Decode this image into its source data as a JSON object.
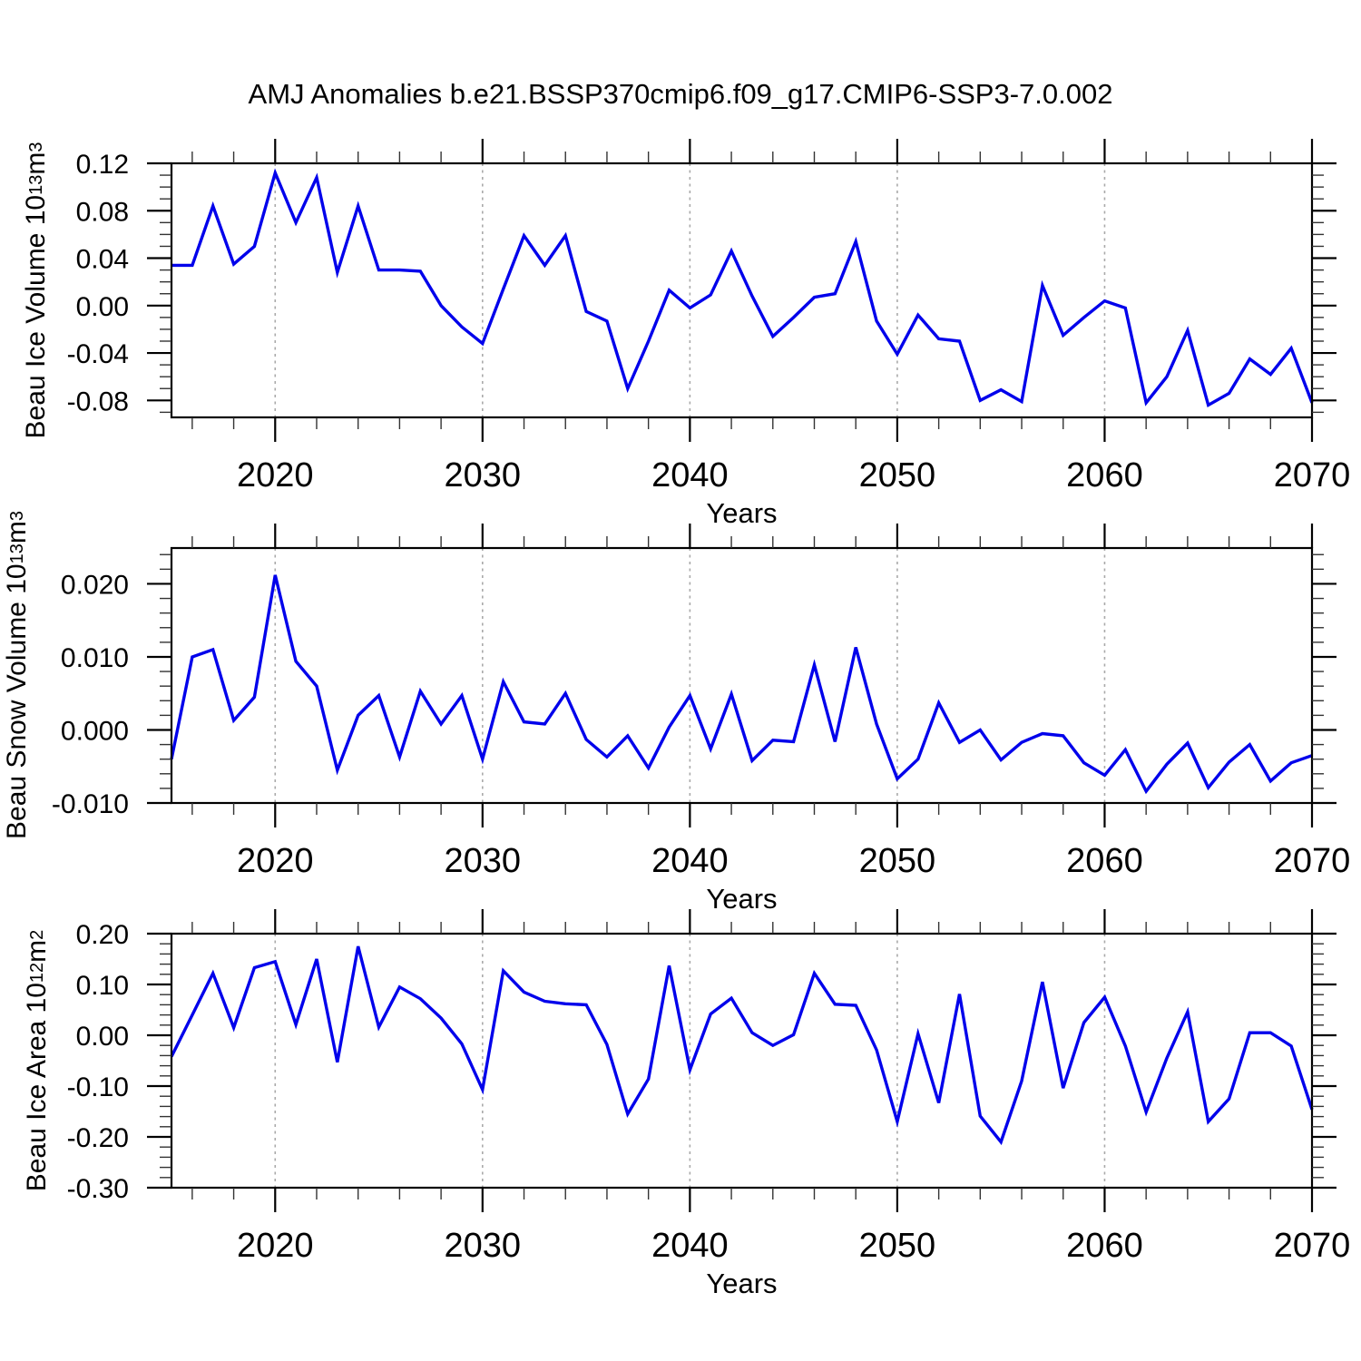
{
  "page": {
    "background": "#ffffff"
  },
  "chart_data": {
    "type": "line",
    "title": "AMJ Anomalies b.e21.BSSP370cmip6.f09_g17.CMIP6-SSP3-7.0.002",
    "xlabel": "Years",
    "xlim": [
      2015,
      2070
    ],
    "x_major_ticks": [
      2020,
      2030,
      2040,
      2050,
      2060,
      2070
    ],
    "x_tick_labels": [
      "2020",
      "2030",
      "2040",
      "2050",
      "2060",
      "2070"
    ],
    "x_minor_step": 2,
    "grid_decades": [
      2020,
      2030,
      2040,
      2050,
      2060
    ],
    "grid_on": true,
    "legend": "none",
    "line_color": "#0000EB",
    "grid_color": "#A9A9A9",
    "axis_color": "#000000",
    "x": [
      2015,
      2016,
      2017,
      2018,
      2019,
      2020,
      2021,
      2022,
      2023,
      2024,
      2025,
      2026,
      2027,
      2028,
      2029,
      2030,
      2031,
      2032,
      2033,
      2034,
      2035,
      2036,
      2037,
      2038,
      2039,
      2040,
      2041,
      2042,
      2043,
      2044,
      2045,
      2046,
      2047,
      2048,
      2049,
      2050,
      2051,
      2052,
      2053,
      2054,
      2055,
      2056,
      2057,
      2058,
      2059,
      2060,
      2061,
      2062,
      2063,
      2064,
      2065,
      2066,
      2067,
      2068,
      2069,
      2070
    ],
    "panels": [
      {
        "name": "beau-ice-volume",
        "ylabel_segments": [
          {
            "t": "Beau Ice Volume 10"
          },
          {
            "t": "13",
            "sup": true
          },
          {
            "t": " m"
          },
          {
            "t": "3",
            "sup": true
          }
        ],
        "ylabel_text": "Beau Ice Volume 10^13 m^3",
        "ylim": [
          -0.0943,
          0.12
        ],
        "y_major_ticks": [
          0.12,
          0.08,
          0.04,
          0.0,
          -0.04,
          -0.08
        ],
        "y_tick_labels": [
          "0.12",
          "0.08",
          "0.04",
          "0.00",
          "-0.04",
          "-0.08"
        ],
        "y_minor_step": 0.01,
        "values": [
          0.034,
          0.034,
          0.084,
          0.035,
          0.05,
          0.112,
          0.07,
          0.108,
          0.028,
          0.084,
          0.03,
          0.03,
          0.029,
          0.0,
          -0.018,
          -0.032,
          0.014,
          0.059,
          0.034,
          0.059,
          -0.005,
          -0.013,
          -0.07,
          -0.03,
          0.013,
          -0.002,
          0.009,
          0.046,
          0.008,
          -0.026,
          -0.01,
          0.007,
          0.01,
          0.054,
          -0.013,
          -0.041,
          -0.008,
          -0.028,
          -0.03,
          -0.08,
          -0.071,
          -0.081,
          0.017,
          -0.025,
          -0.01,
          0.004,
          -0.002,
          -0.082,
          -0.06,
          -0.021,
          -0.084,
          -0.074,
          -0.045,
          -0.058,
          -0.036,
          -0.082
        ]
      },
      {
        "name": "beau-snow-volume",
        "ylabel_segments": [
          {
            "t": "Beau Snow Volume 10"
          },
          {
            "t": "13",
            "sup": true
          },
          {
            "t": " m"
          },
          {
            "t": "3",
            "sup": true
          }
        ],
        "ylabel_text": "Beau Snow Volume 10^13 m^3",
        "ylim": [
          -0.01,
          0.0249
        ],
        "y_major_ticks": [
          0.02,
          0.01,
          0.0,
          -0.01
        ],
        "y_tick_labels": [
          "0.020",
          "0.010",
          "0.000",
          "-0.010"
        ],
        "y_minor_step": 0.002,
        "values": [
          -0.004,
          0.01,
          0.011,
          0.0013,
          0.0045,
          0.0212,
          0.0094,
          0.006,
          -0.0055,
          0.002,
          0.0047,
          -0.0037,
          0.0053,
          0.0008,
          0.0047,
          -0.004,
          0.0066,
          0.0011,
          0.0008,
          0.005,
          -0.0013,
          -0.0037,
          -0.0008,
          -0.0052,
          0.0004,
          0.0047,
          -0.0026,
          0.0049,
          -0.0042,
          -0.0014,
          -0.0016,
          0.0089,
          -0.0016,
          0.0113,
          0.0008,
          -0.0067,
          -0.004,
          0.0037,
          -0.0017,
          0.0,
          -0.0041,
          -0.0017,
          -0.0005,
          -0.0008,
          -0.0045,
          -0.0062,
          -0.0027,
          -0.0084,
          -0.0047,
          -0.0018,
          -0.0079,
          -0.0044,
          -0.002,
          -0.007,
          -0.0045,
          -0.0035
        ]
      },
      {
        "name": "beau-ice-area",
        "ylabel_segments": [
          {
            "t": "Beau Ice Area 10"
          },
          {
            "t": "12",
            "sup": true
          },
          {
            "t": " m"
          },
          {
            "t": "2",
            "sup": true
          }
        ],
        "ylabel_text": "Beau Ice Area 10^12 m^2",
        "ylim": [
          -0.3,
          0.2
        ],
        "y_major_ticks": [
          0.2,
          0.1,
          0.0,
          -0.1,
          -0.2,
          -0.3
        ],
        "y_tick_labels": [
          "0.20",
          "0.10",
          "0.00",
          "-0.10",
          "-0.20",
          "-0.30"
        ],
        "y_minor_step": 0.02,
        "values": [
          -0.042,
          0.04,
          0.122,
          0.015,
          0.133,
          0.145,
          0.021,
          0.15,
          -0.053,
          0.175,
          0.016,
          0.095,
          0.072,
          0.034,
          -0.017,
          -0.107,
          0.127,
          0.085,
          0.067,
          0.062,
          0.06,
          -0.018,
          -0.155,
          -0.086,
          0.137,
          -0.068,
          0.042,
          0.073,
          0.005,
          -0.02,
          0.001,
          0.122,
          0.061,
          0.059,
          -0.029,
          -0.17,
          0.003,
          -0.133,
          0.081,
          -0.159,
          -0.21,
          -0.09,
          0.105,
          -0.104,
          0.025,
          0.075,
          -0.021,
          -0.151,
          -0.045,
          0.046,
          -0.17,
          -0.125,
          0.005,
          0.005,
          -0.021,
          -0.146
        ]
      }
    ]
  }
}
